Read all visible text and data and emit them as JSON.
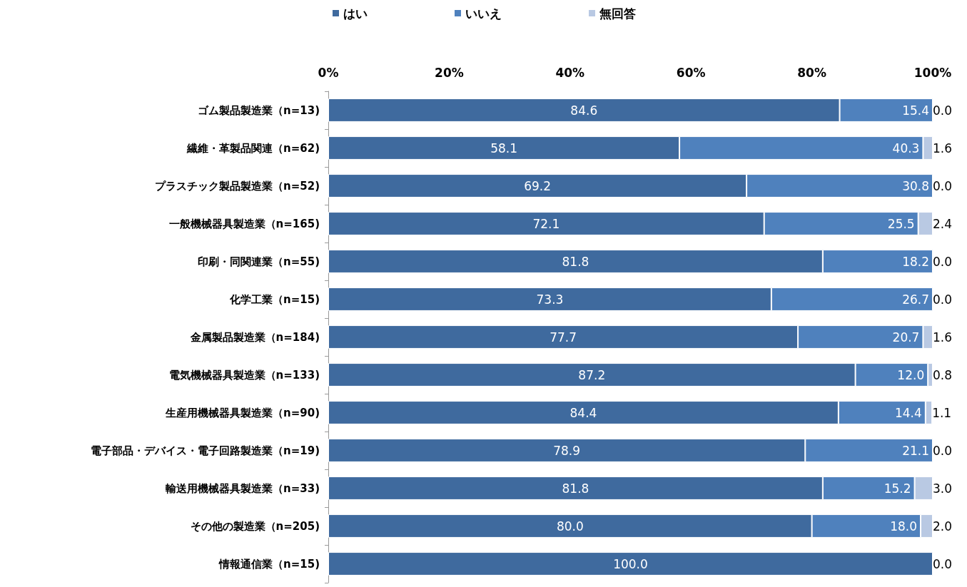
{
  "chart_data": {
    "type": "bar",
    "orientation": "horizontal",
    "stacked": true,
    "legend": "top",
    "grid": false,
    "categories": [
      "ゴム製品製造業（n=13)",
      "繊維・革製品関連（n=62)",
      "プラスチック製品製造業（n=52)",
      "一般機械器具製造業（n=165)",
      "印刷・同関連業（n=55)",
      "化学工業（n=15)",
      "金属製品製造業（n=184)",
      "電気機械器具製造業（n=133)",
      "生産用機械器具製造業（n=90)",
      "電子部品・デバイス・電子回路製造業（n=19)",
      "輸送用機械器具製造業（n=33)",
      "その他の製造業（n=205)",
      "情報通信業（n=15)"
    ],
    "xlim": [
      0,
      100
    ],
    "xticks": [
      {
        "value": 0,
        "label": "0%"
      },
      {
        "value": 20,
        "label": "20%"
      },
      {
        "value": 40,
        "label": "40%"
      },
      {
        "value": 60,
        "label": "60%"
      },
      {
        "value": 80,
        "label": "80%"
      },
      {
        "value": 100,
        "label": "100%"
      }
    ],
    "series": [
      {
        "name": "はい",
        "color": "#3f6a9e",
        "values": [
          84.6,
          58.1,
          69.2,
          72.1,
          81.8,
          73.3,
          77.7,
          87.2,
          84.4,
          78.9,
          81.8,
          80.0,
          100.0
        ],
        "value_labels": [
          "84.6",
          "58.1",
          "69.2",
          "72.1",
          "81.8",
          "73.3",
          "77.7",
          "87.2",
          "84.4",
          "78.9",
          "81.8",
          "80.0",
          "100.0"
        ]
      },
      {
        "name": "いいえ",
        "color": "#4f81bd",
        "values": [
          15.4,
          40.3,
          30.8,
          25.5,
          18.2,
          26.7,
          20.7,
          12.0,
          14.4,
          21.1,
          15.2,
          18.0,
          0.0
        ],
        "value_labels": [
          "15.4",
          "40.3",
          "30.8",
          "25.5",
          "18.2",
          "26.7",
          "20.7",
          "12.0",
          "14.4",
          "21.1",
          "15.2",
          "18.0",
          null
        ]
      },
      {
        "name": "無回答",
        "color": "#b9c9e3",
        "values": [
          0.0,
          1.6,
          0.0,
          2.4,
          0.0,
          0.0,
          1.6,
          0.8,
          1.1,
          0.0,
          3.0,
          2.0,
          0.0
        ],
        "value_labels": [
          "0.0",
          "1.6",
          "0.0",
          "2.4",
          "0.0",
          "0.0",
          "1.6",
          "0.8",
          "1.1",
          "0.0",
          "3.0",
          "2.0",
          "0.0"
        ]
      }
    ]
  }
}
